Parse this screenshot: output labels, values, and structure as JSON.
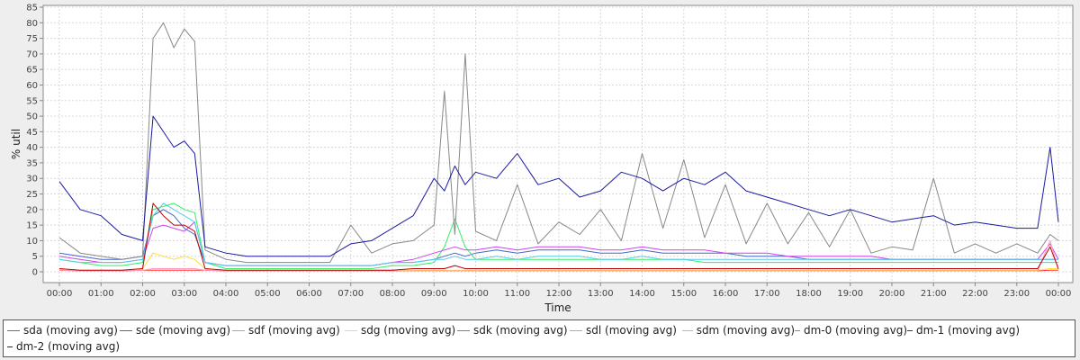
{
  "chart_data": {
    "type": "line",
    "title": "",
    "xlabel": "Time",
    "ylabel": "% util",
    "ylim": [
      0,
      85
    ],
    "yticks": [
      0,
      5,
      10,
      15,
      20,
      25,
      30,
      35,
      40,
      45,
      50,
      55,
      60,
      65,
      70,
      75,
      80,
      85
    ],
    "xtick_labels": [
      "00:00",
      "01:00",
      "02:00",
      "03:00",
      "04:00",
      "05:00",
      "06:00",
      "07:00",
      "08:00",
      "09:00",
      "10:00",
      "11:00",
      "12:00",
      "13:00",
      "14:00",
      "15:00",
      "16:00",
      "17:00",
      "18:00",
      "19:00",
      "20:00",
      "21:00",
      "22:00",
      "23:00",
      "00:00"
    ],
    "grid": true,
    "legend_position": "bottom",
    "x": [
      0,
      0.5,
      1,
      1.5,
      2,
      2.25,
      2.5,
      2.75,
      3,
      3.25,
      3.5,
      4,
      4.5,
      5,
      5.5,
      6,
      6.5,
      7,
      7.5,
      8,
      8.5,
      9,
      9.25,
      9.5,
      9.75,
      10,
      10.5,
      11,
      11.5,
      12,
      12.5,
      13,
      13.5,
      14,
      14.5,
      15,
      15.5,
      16,
      16.5,
      17,
      17.5,
      18,
      18.5,
      19,
      19.5,
      20,
      20.5,
      21,
      21.5,
      22,
      22.5,
      23,
      23.5,
      23.8,
      24
    ],
    "series": [
      {
        "name": "sda (moving avg)",
        "color": "#ff3333",
        "values": [
          0.5,
          0.3,
          0.3,
          0.3,
          0.5,
          0.5,
          0.5,
          0.5,
          0.5,
          0.5,
          0.5,
          0.3,
          0.3,
          0.3,
          0.3,
          0.3,
          0.3,
          0.3,
          0.3,
          0.3,
          0.3,
          0.3,
          0.3,
          0.3,
          0.3,
          0.3,
          0.3,
          0.3,
          0.3,
          0.3,
          0.3,
          0.3,
          0.3,
          0.3,
          0.3,
          0.3,
          0.3,
          0.3,
          0.3,
          0.3,
          0.3,
          0.3,
          0.3,
          0.3,
          0.3,
          0.3,
          0.3,
          0.3,
          0.3,
          0.3,
          0.3,
          0.3,
          0.3,
          0.5,
          0.5
        ]
      },
      {
        "name": "sde (moving avg)",
        "color": "#4466cc",
        "values": [
          6,
          5,
          4,
          4,
          5,
          18,
          20,
          18,
          14,
          12,
          3,
          2,
          2,
          2,
          2,
          2,
          2,
          2,
          2,
          3,
          3,
          4,
          5,
          6,
          5,
          6,
          7,
          6,
          7,
          7,
          7,
          6,
          6,
          7,
          6,
          6,
          6,
          6,
          5,
          5,
          5,
          4,
          4,
          4,
          4,
          4,
          4,
          4,
          4,
          4,
          4,
          4,
          4,
          4,
          4
        ]
      },
      {
        "name": "sdf (moving avg)",
        "color": "#33ee66",
        "values": [
          4,
          3,
          2,
          2,
          3,
          20,
          21,
          22,
          20,
          19,
          3,
          1,
          1,
          1,
          1,
          1,
          1,
          1,
          1,
          2,
          2,
          3,
          8,
          17,
          8,
          4,
          4,
          4,
          4,
          4,
          4,
          4,
          4,
          4,
          4,
          4,
          3,
          3,
          3,
          3,
          3,
          3,
          3,
          3,
          3,
          3,
          3,
          3,
          3,
          3,
          3,
          3,
          3,
          3,
          3
        ]
      },
      {
        "name": "sdg (moving avg)",
        "color": "#ffdd33",
        "values": [
          1,
          0.5,
          0.5,
          0.5,
          1,
          6,
          5,
          4,
          5,
          4,
          1,
          0.5,
          0.5,
          0.5,
          0.5,
          0.5,
          0.5,
          0.5,
          0.5,
          0.5,
          0.5,
          0.5,
          0.5,
          0.5,
          0.5,
          0.5,
          0.5,
          0.5,
          0.5,
          0.5,
          0.5,
          0.5,
          0.5,
          0.5,
          0.5,
          0.5,
          0.5,
          0.5,
          0.5,
          0.5,
          0.5,
          0.5,
          0.5,
          0.5,
          0.5,
          0.5,
          0.5,
          0.5,
          0.5,
          0.5,
          0.5,
          0.5,
          0.5,
          1,
          1
        ]
      },
      {
        "name": "sdk (moving avg)",
        "color": "#cc44ee",
        "values": [
          5,
          4,
          3,
          3,
          4,
          14,
          15,
          14,
          13,
          16,
          3,
          2,
          2,
          2,
          2,
          2,
          2,
          2,
          2,
          3,
          4,
          6,
          7,
          8,
          7,
          7,
          8,
          7,
          8,
          8,
          8,
          7,
          7,
          8,
          7,
          7,
          7,
          6,
          6,
          6,
          5,
          5,
          5,
          5,
          5,
          4,
          4,
          4,
          4,
          4,
          4,
          4,
          4,
          9,
          4
        ]
      },
      {
        "name": "sdl (moving avg)",
        "color": "#55ccee",
        "values": [
          4,
          3,
          3,
          3,
          4,
          18,
          22,
          20,
          18,
          16,
          3,
          2,
          2,
          2,
          2,
          2,
          2,
          2,
          2,
          3,
          3,
          4,
          4,
          5,
          4,
          4,
          5,
          4,
          5,
          5,
          5,
          4,
          4,
          5,
          4,
          4,
          4,
          4,
          4,
          4,
          4,
          4,
          4,
          4,
          4,
          4,
          4,
          4,
          4,
          4,
          4,
          4,
          4,
          4,
          4
        ]
      },
      {
        "name": "sdm (moving avg)",
        "color": "#ff99bb",
        "values": [
          0.5,
          0.3,
          0.3,
          0.3,
          0.5,
          1,
          1,
          1,
          1,
          1,
          0.5,
          0.3,
          0.3,
          0.3,
          0.3,
          0.3,
          0.3,
          0.3,
          0.3,
          0.3,
          0.3,
          0.3,
          0.3,
          0.3,
          0.3,
          0.3,
          0.3,
          0.3,
          0.3,
          0.3,
          0.3,
          0.3,
          0.3,
          0.3,
          0.3,
          0.3,
          0.3,
          0.3,
          0.3,
          0.3,
          0.3,
          0.3,
          0.3,
          0.3,
          0.3,
          0.3,
          0.3,
          0.3,
          0.3,
          0.3,
          0.3,
          0.3,
          0.3,
          10,
          0.5
        ]
      },
      {
        "name": "dm-0 (moving avg)",
        "color": "#888888",
        "values": [
          11,
          6,
          5,
          4,
          5,
          75,
          80,
          72,
          78,
          74,
          7,
          4,
          3,
          3,
          3,
          3,
          3,
          15,
          6,
          9,
          10,
          15,
          58,
          12,
          70,
          13,
          10,
          28,
          9,
          16,
          12,
          20,
          10,
          38,
          14,
          36,
          11,
          28,
          9,
          22,
          9,
          19,
          8,
          20,
          6,
          8,
          7,
          30,
          6,
          9,
          6,
          9,
          6,
          12,
          10
        ]
      },
      {
        "name": "dm-1 (moving avg)",
        "color": "#bb0000",
        "values": [
          1,
          0.5,
          0.5,
          0.5,
          1,
          22,
          18,
          15,
          15,
          13,
          1,
          0.5,
          0.5,
          0.5,
          0.5,
          0.5,
          0.5,
          0.5,
          0.5,
          0.5,
          1,
          1,
          1,
          2,
          1,
          1,
          1,
          1,
          1,
          1,
          1,
          1,
          1,
          1,
          1,
          1,
          1,
          1,
          1,
          1,
          1,
          1,
          1,
          1,
          1,
          1,
          1,
          1,
          1,
          1,
          1,
          1,
          1,
          8,
          1
        ]
      },
      {
        "name": "dm-2 (moving avg)",
        "color": "#1a1aa0",
        "values": [
          29,
          20,
          18,
          12,
          10,
          50,
          45,
          40,
          42,
          38,
          8,
          6,
          5,
          5,
          5,
          5,
          5,
          9,
          10,
          14,
          18,
          30,
          26,
          34,
          28,
          32,
          30,
          38,
          28,
          30,
          24,
          26,
          32,
          30,
          26,
          30,
          28,
          32,
          26,
          24,
          22,
          20,
          18,
          20,
          18,
          16,
          17,
          18,
          15,
          16,
          15,
          14,
          14,
          40,
          16
        ]
      }
    ]
  }
}
